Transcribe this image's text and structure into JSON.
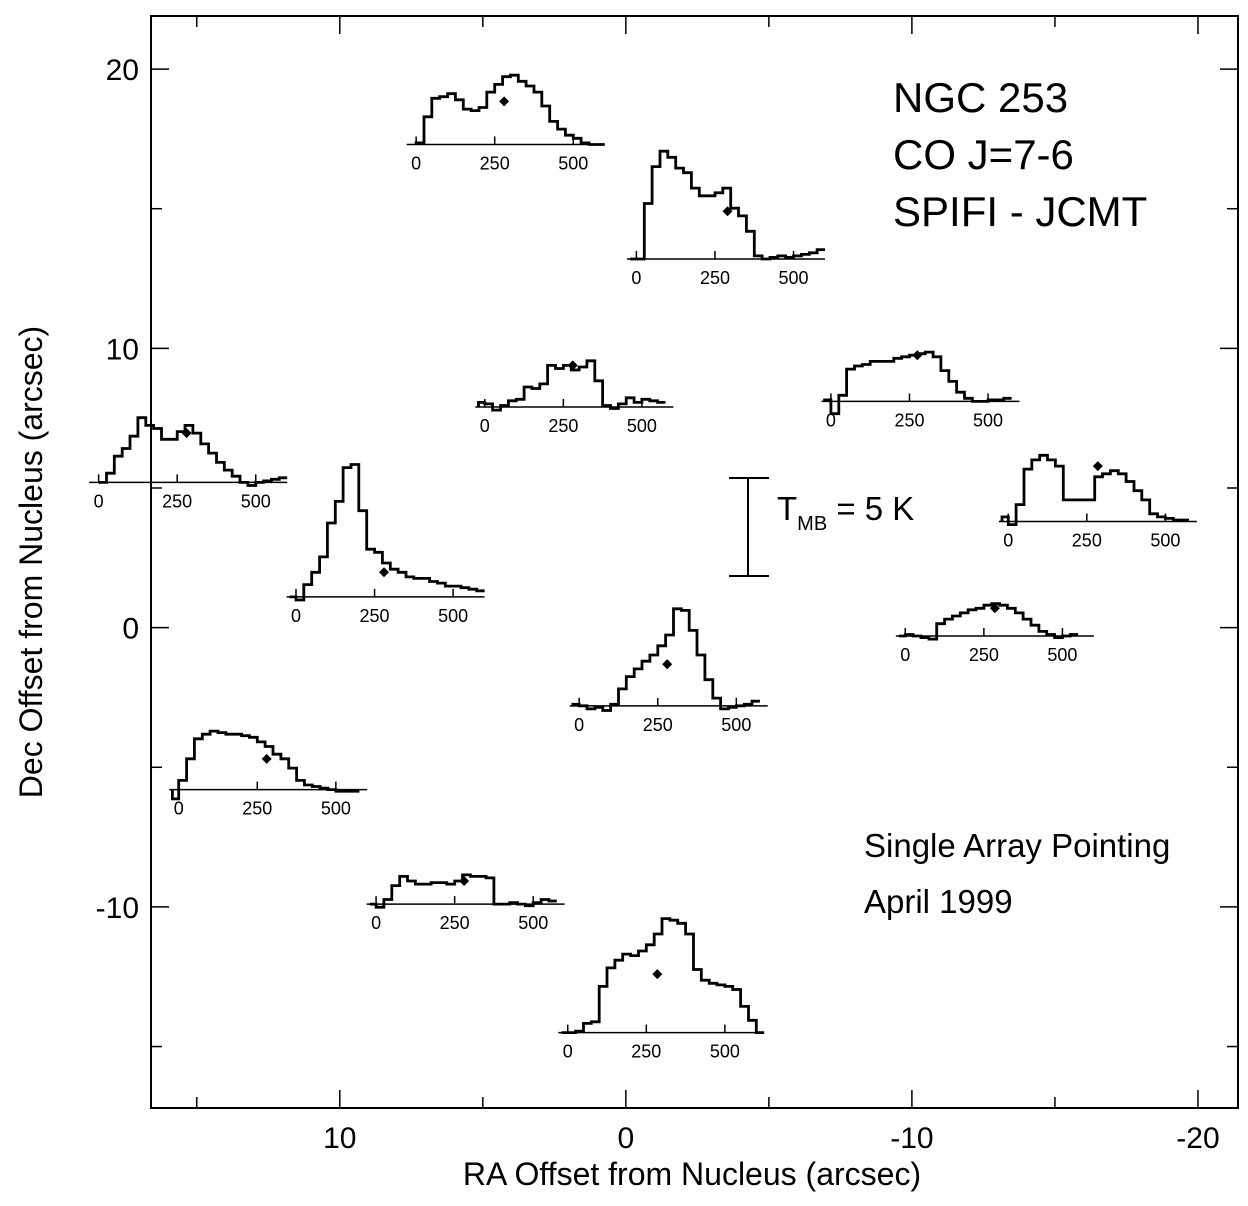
{
  "chart_data": {
    "type": "line",
    "title_lines": [
      "NGC 253",
      "CO J=7-6",
      "SPIFI - JCMT"
    ],
    "annotation_lines": [
      "Single Array Pointing",
      "April 1999"
    ],
    "xlabel": "RA Offset from Nucleus (arcsec)",
    "ylabel": "Dec Offset from Nucleus (arcsec)",
    "xlim": [
      16.6,
      -21.4
    ],
    "ylim": [
      -17.2,
      21.9
    ],
    "xticks": [
      10,
      0,
      -10,
      -20
    ],
    "xtick_labels": [
      "10",
      "0",
      "-10",
      "-20"
    ],
    "yticks": [
      20,
      10,
      0,
      -10
    ],
    "ytick_labels": [
      "20",
      "10",
      "0",
      "-10"
    ],
    "grid": false,
    "scale_bar": {
      "label": "T",
      "sub": "MB",
      "rest": " = 5 K",
      "value_K": 5
    },
    "inset_x_ticks": [
      "0",
      "250",
      "500"
    ],
    "inset_x_range_kms": [
      -30,
      600
    ],
    "spectra": [
      {
        "name": "spectrum-ra-4-dec-20",
        "ra": 4.2,
        "dec": 17.3,
        "marker_v": 280,
        "marker_T": 2.8,
        "steps": [
          [
            0,
            0.1
          ],
          [
            25,
            1.8
          ],
          [
            50,
            3.0
          ],
          [
            75,
            3.1
          ],
          [
            100,
            3.3
          ],
          [
            125,
            2.9
          ],
          [
            150,
            2.3
          ],
          [
            175,
            2.2
          ],
          [
            200,
            2.4
          ],
          [
            225,
            3.4
          ],
          [
            250,
            3.9
          ],
          [
            275,
            4.4
          ],
          [
            300,
            4.5
          ],
          [
            325,
            4.1
          ],
          [
            350,
            3.8
          ],
          [
            375,
            3.4
          ],
          [
            400,
            2.5
          ],
          [
            425,
            1.5
          ],
          [
            450,
            1.0
          ],
          [
            475,
            0.6
          ],
          [
            500,
            0.4
          ],
          [
            525,
            0.1
          ],
          [
            550,
            0.0
          ],
          [
            575,
            0.0
          ]
        ]
      },
      {
        "name": "spectrum-ra-minus-3-dec-16",
        "ra": -3.5,
        "dec": 13.2,
        "marker_v": 290,
        "marker_T": 3.1,
        "steps": [
          [
            -20,
            0.0
          ],
          [
            0,
            0.0
          ],
          [
            25,
            3.6
          ],
          [
            50,
            6.0
          ],
          [
            75,
            7.0
          ],
          [
            100,
            6.6
          ],
          [
            125,
            5.9
          ],
          [
            150,
            5.6
          ],
          [
            175,
            4.6
          ],
          [
            200,
            4.1
          ],
          [
            225,
            4.1
          ],
          [
            250,
            4.3
          ],
          [
            275,
            4.6
          ],
          [
            300,
            3.3
          ],
          [
            325,
            2.8
          ],
          [
            350,
            1.8
          ],
          [
            375,
            0.2
          ],
          [
            400,
            0.0
          ],
          [
            425,
            0.1
          ],
          [
            450,
            0.2
          ],
          [
            475,
            0.1
          ],
          [
            500,
            0.2
          ],
          [
            525,
            0.3
          ],
          [
            550,
            0.4
          ],
          [
            575,
            0.6
          ]
        ]
      },
      {
        "name": "spectrum-ra-minus-10-dec-11",
        "ra": -10.3,
        "dec": 8.1,
        "marker_v": 275,
        "marker_T": 3.0,
        "steps": [
          [
            -20,
            0.1
          ],
          [
            0,
            -0.8
          ],
          [
            25,
            0.4
          ],
          [
            50,
            2.1
          ],
          [
            75,
            2.3
          ],
          [
            100,
            2.4
          ],
          [
            125,
            2.6
          ],
          [
            150,
            2.6
          ],
          [
            175,
            2.6
          ],
          [
            200,
            2.8
          ],
          [
            225,
            2.9
          ],
          [
            250,
            3.0
          ],
          [
            275,
            3.1
          ],
          [
            300,
            3.2
          ],
          [
            325,
            2.9
          ],
          [
            350,
            2.0
          ],
          [
            375,
            1.3
          ],
          [
            400,
            0.6
          ],
          [
            425,
            0.2
          ],
          [
            450,
            0.0
          ],
          [
            475,
            0.0
          ],
          [
            500,
            0.1
          ],
          [
            525,
            0.1
          ],
          [
            550,
            0.2
          ]
        ]
      },
      {
        "name": "spectrum-ra-minus-17-dec-7",
        "ra": -16.5,
        "dec": 3.8,
        "marker_v": 285,
        "marker_T": 3.6,
        "steps": [
          [
            -20,
            0.3
          ],
          [
            0,
            -0.2
          ],
          [
            25,
            1.1
          ],
          [
            50,
            3.4
          ],
          [
            75,
            4.0
          ],
          [
            100,
            4.3
          ],
          [
            125,
            4.0
          ],
          [
            150,
            3.6
          ],
          [
            175,
            1.4
          ],
          [
            200,
            1.4
          ],
          [
            225,
            1.4
          ],
          [
            250,
            1.4
          ],
          [
            275,
            2.9
          ],
          [
            300,
            3.1
          ],
          [
            325,
            3.3
          ],
          [
            350,
            3.1
          ],
          [
            375,
            2.6
          ],
          [
            400,
            2.0
          ],
          [
            425,
            1.4
          ],
          [
            450,
            0.5
          ],
          [
            475,
            0.3
          ],
          [
            500,
            0.2
          ],
          [
            525,
            0.1
          ],
          [
            550,
            0.1
          ]
        ]
      },
      {
        "name": "spectrum-ra-1-dec-9",
        "ra": 1.8,
        "dec": 7.9,
        "marker_v": 280,
        "marker_T": 2.7,
        "steps": [
          [
            -20,
            0.3
          ],
          [
            0,
            0.2
          ],
          [
            25,
            -0.2
          ],
          [
            50,
            0.1
          ],
          [
            75,
            0.4
          ],
          [
            100,
            0.5
          ],
          [
            125,
            1.3
          ],
          [
            150,
            1.2
          ],
          [
            175,
            1.5
          ],
          [
            200,
            2.7
          ],
          [
            225,
            2.5
          ],
          [
            250,
            2.7
          ],
          [
            275,
            2.4
          ],
          [
            300,
            2.6
          ],
          [
            325,
            3.0
          ],
          [
            350,
            1.7
          ],
          [
            375,
            0.1
          ],
          [
            400,
            -0.1
          ],
          [
            425,
            0.2
          ],
          [
            450,
            0.6
          ],
          [
            475,
            0.3
          ],
          [
            500,
            0.5
          ],
          [
            525,
            0.4
          ],
          [
            550,
            0.3
          ]
        ]
      },
      {
        "name": "spectrum-ra-12-dec-7",
        "ra": 15.3,
        "dec": 5.2,
        "marker_v": 280,
        "marker_T": 3.2,
        "steps": [
          [
            0,
            0.0
          ],
          [
            25,
            0.6
          ],
          [
            50,
            1.7
          ],
          [
            75,
            2.2
          ],
          [
            100,
            3.0
          ],
          [
            125,
            4.2
          ],
          [
            150,
            3.7
          ],
          [
            175,
            3.5
          ],
          [
            200,
            2.8
          ],
          [
            225,
            2.8
          ],
          [
            250,
            3.3
          ],
          [
            275,
            3.7
          ],
          [
            300,
            3.2
          ],
          [
            325,
            2.5
          ],
          [
            350,
            1.9
          ],
          [
            375,
            1.3
          ],
          [
            400,
            0.8
          ],
          [
            425,
            0.4
          ],
          [
            450,
            0.0
          ],
          [
            475,
            -0.2
          ],
          [
            500,
            0.0
          ],
          [
            525,
            0.1
          ],
          [
            550,
            0.2
          ],
          [
            575,
            0.3
          ]
        ]
      },
      {
        "name": "spectrum-ra-6-dec-3",
        "ra": 8.4,
        "dec": 1.1,
        "marker_v": 280,
        "marker_T": 1.6,
        "steps": [
          [
            -20,
            0.0
          ],
          [
            0,
            -0.2
          ],
          [
            25,
            0.8
          ],
          [
            50,
            1.6
          ],
          [
            75,
            2.6
          ],
          [
            100,
            4.8
          ],
          [
            125,
            6.2
          ],
          [
            150,
            8.4
          ],
          [
            175,
            8.6
          ],
          [
            200,
            5.6
          ],
          [
            225,
            3.1
          ],
          [
            250,
            2.9
          ],
          [
            275,
            2.2
          ],
          [
            300,
            1.8
          ],
          [
            325,
            1.6
          ],
          [
            350,
            1.3
          ],
          [
            375,
            1.2
          ],
          [
            400,
            1.2
          ],
          [
            425,
            1.0
          ],
          [
            450,
            0.9
          ],
          [
            475,
            0.7
          ],
          [
            500,
            0.7
          ],
          [
            525,
            0.6
          ],
          [
            550,
            0.5
          ],
          [
            575,
            0.4
          ]
        ]
      },
      {
        "name": "spectrum-ra-minus-2-dec-0",
        "ra": -1.5,
        "dec": -2.8,
        "marker_v": 280,
        "marker_T": 2.7,
        "steps": [
          [
            -20,
            0.1
          ],
          [
            0,
            0.0
          ],
          [
            25,
            -0.2
          ],
          [
            50,
            -0.1
          ],
          [
            75,
            -0.3
          ],
          [
            100,
            0.1
          ],
          [
            125,
            1.1
          ],
          [
            150,
            1.9
          ],
          [
            175,
            2.4
          ],
          [
            200,
            2.9
          ],
          [
            225,
            3.3
          ],
          [
            250,
            3.9
          ],
          [
            275,
            4.6
          ],
          [
            300,
            6.3
          ],
          [
            325,
            6.2
          ],
          [
            350,
            4.9
          ],
          [
            375,
            3.3
          ],
          [
            400,
            1.7
          ],
          [
            425,
            0.5
          ],
          [
            450,
            -0.2
          ],
          [
            475,
            -0.1
          ],
          [
            500,
            0.0
          ],
          [
            525,
            0.1
          ],
          [
            550,
            0.3
          ]
        ]
      },
      {
        "name": "spectrum-ra-minus-12-dec-1",
        "ra": -12.9,
        "dec": -0.3,
        "marker_v": 285,
        "marker_T": 1.8,
        "steps": [
          [
            -20,
            0.0
          ],
          [
            0,
            0.1
          ],
          [
            25,
            0.0
          ],
          [
            50,
            -0.1
          ],
          [
            75,
            -0.2
          ],
          [
            100,
            0.8
          ],
          [
            125,
            1.1
          ],
          [
            150,
            1.3
          ],
          [
            175,
            1.5
          ],
          [
            200,
            1.7
          ],
          [
            225,
            1.8
          ],
          [
            250,
            2.0
          ],
          [
            275,
            2.1
          ],
          [
            300,
            2.0
          ],
          [
            325,
            1.8
          ],
          [
            350,
            1.5
          ],
          [
            375,
            1.1
          ],
          [
            400,
            0.7
          ],
          [
            425,
            0.3
          ],
          [
            450,
            0.1
          ],
          [
            475,
            -0.1
          ],
          [
            500,
            0.0
          ],
          [
            525,
            0.1
          ]
        ]
      },
      {
        "name": "spectrum-ra-12-dec-minus-4",
        "ra": 12.5,
        "dec": -5.8,
        "marker_v": 280,
        "marker_T": 2.0,
        "steps": [
          [
            -20,
            -0.6
          ],
          [
            0,
            0.6
          ],
          [
            25,
            2.0
          ],
          [
            50,
            3.3
          ],
          [
            75,
            3.6
          ],
          [
            100,
            3.8
          ],
          [
            125,
            3.7
          ],
          [
            150,
            3.6
          ],
          [
            175,
            3.6
          ],
          [
            200,
            3.5
          ],
          [
            225,
            3.4
          ],
          [
            250,
            3.1
          ],
          [
            275,
            2.8
          ],
          [
            300,
            2.3
          ],
          [
            325,
            2.0
          ],
          [
            350,
            1.4
          ],
          [
            375,
            0.6
          ],
          [
            400,
            0.3
          ],
          [
            425,
            0.2
          ],
          [
            450,
            0.1
          ],
          [
            475,
            0.0
          ],
          [
            500,
            -0.1
          ],
          [
            525,
            -0.1
          ],
          [
            550,
            -0.1
          ]
        ]
      },
      {
        "name": "spectrum-ra-6-dec-minus-8",
        "ra": 5.6,
        "dec": -9.9,
        "marker_v": 280,
        "marker_T": 1.5,
        "steps": [
          [
            -20,
            0.0
          ],
          [
            0,
            -0.2
          ],
          [
            25,
            0.3
          ],
          [
            50,
            1.2
          ],
          [
            75,
            1.8
          ],
          [
            100,
            1.5
          ],
          [
            125,
            1.3
          ],
          [
            150,
            1.3
          ],
          [
            175,
            1.4
          ],
          [
            200,
            1.4
          ],
          [
            225,
            1.3
          ],
          [
            250,
            1.5
          ],
          [
            275,
            1.9
          ],
          [
            300,
            1.8
          ],
          [
            325,
            1.8
          ],
          [
            350,
            1.7
          ],
          [
            375,
            0.0
          ],
          [
            400,
            0.0
          ],
          [
            425,
            0.1
          ],
          [
            450,
            0.0
          ],
          [
            475,
            -0.1
          ],
          [
            500,
            0.1
          ],
          [
            525,
            0.3
          ],
          [
            550,
            0.2
          ]
        ]
      },
      {
        "name": "spectrum-ra-minus-4-dec-minus-11",
        "ra": -1.1,
        "dec": -14.5,
        "marker_v": 285,
        "marker_T": 3.8,
        "steps": [
          [
            -20,
            0.0
          ],
          [
            0,
            0.0
          ],
          [
            25,
            0.1
          ],
          [
            50,
            0.6
          ],
          [
            75,
            0.7
          ],
          [
            100,
            3.0
          ],
          [
            125,
            4.2
          ],
          [
            150,
            4.7
          ],
          [
            175,
            5.1
          ],
          [
            200,
            5.0
          ],
          [
            225,
            5.3
          ],
          [
            250,
            5.7
          ],
          [
            275,
            6.4
          ],
          [
            300,
            7.4
          ],
          [
            325,
            7.3
          ],
          [
            350,
            7.1
          ],
          [
            375,
            6.4
          ],
          [
            400,
            4.1
          ],
          [
            425,
            3.4
          ],
          [
            450,
            3.2
          ],
          [
            475,
            3.1
          ],
          [
            500,
            3.0
          ],
          [
            525,
            2.8
          ],
          [
            550,
            1.7
          ],
          [
            575,
            0.8
          ],
          [
            600,
            0.0
          ]
        ]
      }
    ]
  }
}
